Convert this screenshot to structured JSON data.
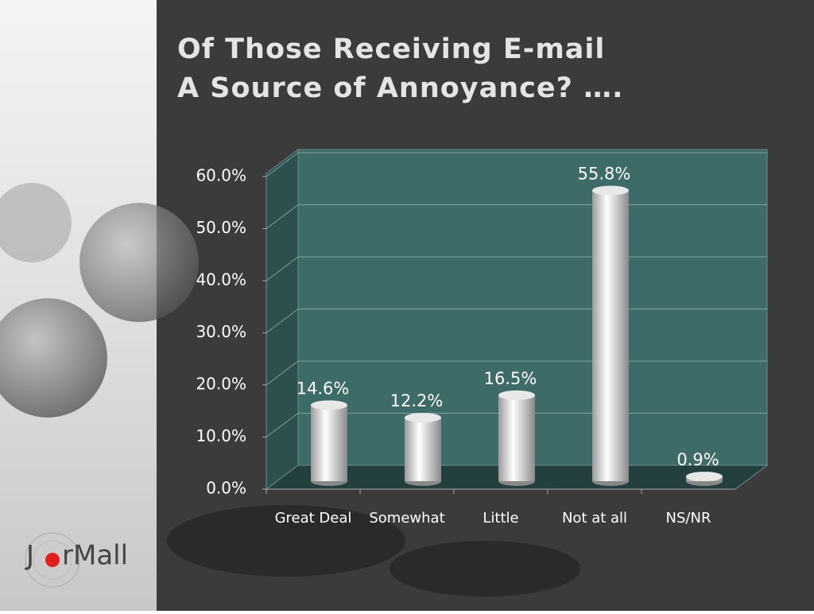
{
  "chart_data": {
    "type": "bar",
    "title": [
      "Of Those Receiving E-mail",
      "A Source of Annoyance? …."
    ],
    "categories": [
      "Great Deal",
      "Somewhat",
      "Little",
      "Not at all",
      "NS/NR"
    ],
    "values": [
      14.6,
      12.2,
      16.5,
      55.8,
      0.9
    ],
    "value_labels": [
      "14.6%",
      "12.2%",
      "16.5%",
      "55.8%",
      "0.9%"
    ],
    "ylim": [
      0,
      60
    ],
    "yticks": [
      {
        "value": 0,
        "label": "0.0%"
      },
      {
        "value": 10,
        "label": "10.0%"
      },
      {
        "value": 20,
        "label": "20.0%"
      },
      {
        "value": 30,
        "label": "30.0%"
      },
      {
        "value": 40,
        "label": "40.0%"
      },
      {
        "value": 50,
        "label": "50.0%"
      },
      {
        "value": 60,
        "label": "60.0%"
      }
    ],
    "grid": true
  },
  "logo": [
    "J",
    "rMall"
  ]
}
